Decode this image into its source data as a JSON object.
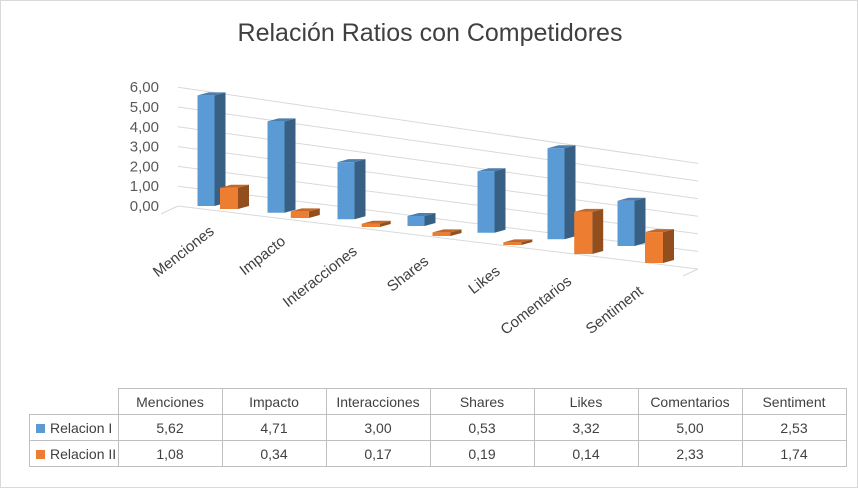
{
  "chart_data": {
    "type": "bar",
    "title": "Relación Ratios con Competidores",
    "categories": [
      "Menciones",
      "Impacto",
      "Interacciones",
      "Shares",
      "Likes",
      "Comentarios",
      "Sentiment"
    ],
    "series": [
      {
        "name": "Relacion I",
        "values": [
          5.62,
          4.71,
          3.0,
          0.53,
          3.32,
          5.0,
          2.53
        ],
        "color": "#5b9bd5"
      },
      {
        "name": "Relacion II",
        "values": [
          1.08,
          0.34,
          0.17,
          0.19,
          0.14,
          2.33,
          1.74
        ],
        "color": "#ed7d31"
      }
    ],
    "y_tick_labels": [
      "0,00",
      "1,00",
      "2,00",
      "3,00",
      "4,00",
      "5,00",
      "6,00"
    ],
    "ylim": [
      0,
      6
    ],
    "grid": true,
    "style": "3d-column",
    "legend": "data-table"
  },
  "table": {
    "rows": [
      {
        "name": "Relacion I",
        "color": "#5b9bd5",
        "cells": [
          "5,62",
          "4,71",
          "3,00",
          "0,53",
          "3,32",
          "5,00",
          "2,53"
        ]
      },
      {
        "name": "Relacion II",
        "color": "#ed7d31",
        "cells": [
          "1,08",
          "0,34",
          "0,17",
          "0,19",
          "0,14",
          "2,33",
          "1,74"
        ]
      }
    ]
  }
}
